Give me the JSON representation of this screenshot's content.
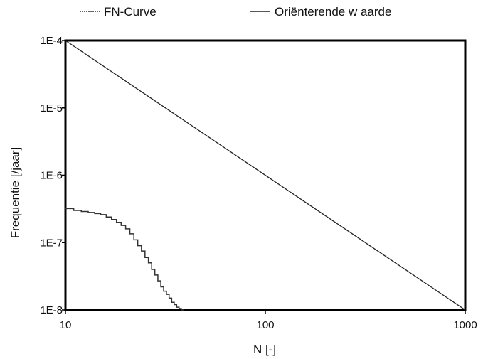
{
  "chart_data": {
    "type": "line",
    "xlabel": "N [-]",
    "ylabel": "Frequentie [/jaar]",
    "x_scale": "log",
    "y_scale": "log",
    "xlim": [
      10,
      1000
    ],
    "ylim": [
      1e-08,
      0.0001
    ],
    "x_ticks": [
      {
        "value": 10,
        "label": "10"
      },
      {
        "value": 100,
        "label": "100"
      },
      {
        "value": 1000,
        "label": "1000"
      }
    ],
    "y_ticks": [
      {
        "value": 0.0001,
        "label": "1E-4"
      },
      {
        "value": 1e-05,
        "label": "1E-5"
      },
      {
        "value": 1e-06,
        "label": "1E-6"
      },
      {
        "value": 1e-07,
        "label": "1E-7"
      },
      {
        "value": 1e-08,
        "label": "1E-8"
      }
    ],
    "legend_position": "top",
    "grid": false,
    "series": [
      {
        "name": "FN-Curve",
        "style": "step",
        "color": "#333333",
        "x": [
          10,
          11,
          12,
          13,
          14,
          15,
          16,
          17,
          18,
          19,
          20,
          21,
          22,
          23,
          24,
          25,
          26,
          27,
          28,
          29,
          30,
          31,
          32,
          33,
          34,
          35,
          36,
          37,
          38
        ],
        "y": [
          3.2e-07,
          3e-07,
          2.9e-07,
          2.8e-07,
          2.7e-07,
          2.6e-07,
          2.4e-07,
          2.2e-07,
          2e-07,
          1.8e-07,
          1.6e-07,
          1.35e-07,
          1.1e-07,
          9e-08,
          7.5e-08,
          6e-08,
          5e-08,
          4e-08,
          3.3e-08,
          2.7e-08,
          2.2e-08,
          1.9e-08,
          1.7e-08,
          1.5e-08,
          1.3e-08,
          1.2e-08,
          1.1e-08,
          1.05e-08,
          1e-08
        ]
      },
      {
        "name": "Oriënterende w aarde",
        "style": "line",
        "color": "#222222",
        "x": [
          10,
          1000
        ],
        "y": [
          0.0001,
          1e-08
        ]
      }
    ]
  }
}
